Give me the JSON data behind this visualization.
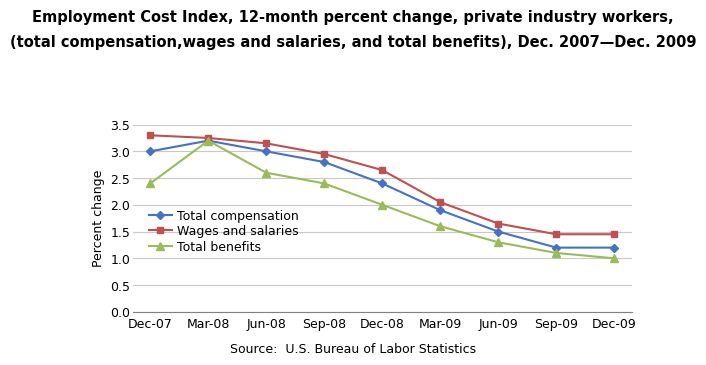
{
  "title_line1": "Employment Cost Index, 12-month percent change, private industry workers,",
  "title_line2": "(total compensation,wages and salaries, and total benefits), Dec. 2007—Dec. 2009",
  "source_label": "Source:  U.S. Bureau of Labor Statistics",
  "ylabel": "Percent change",
  "x_labels": [
    "Dec-07",
    "Mar-08",
    "Jun-08",
    "Sep-08",
    "Dec-08",
    "Mar-09",
    "Jun-09",
    "Sep-09",
    "Dec-09"
  ],
  "total_compensation": [
    3.0,
    3.2,
    3.0,
    2.8,
    2.4,
    1.9,
    1.5,
    1.2,
    1.2
  ],
  "wages_and_salaries": [
    3.3,
    3.25,
    3.15,
    2.95,
    2.65,
    2.05,
    1.65,
    1.45,
    1.45
  ],
  "total_benefits": [
    2.4,
    3.2,
    2.6,
    2.4,
    2.0,
    1.6,
    1.3,
    1.1,
    1.0
  ],
  "color_compensation": "#4472C4",
  "color_wages": "#C0504D",
  "color_benefits": "#9BBB59",
  "ylim": [
    0.0,
    3.5
  ],
  "yticks": [
    0.0,
    0.5,
    1.0,
    1.5,
    2.0,
    2.5,
    3.0,
    3.5
  ],
  "title_fontsize": 10.5,
  "axis_label_fontsize": 9,
  "tick_fontsize": 9,
  "legend_fontsize": 9,
  "background_color": "#FFFFFF",
  "grid_color": "#C8C8C8"
}
